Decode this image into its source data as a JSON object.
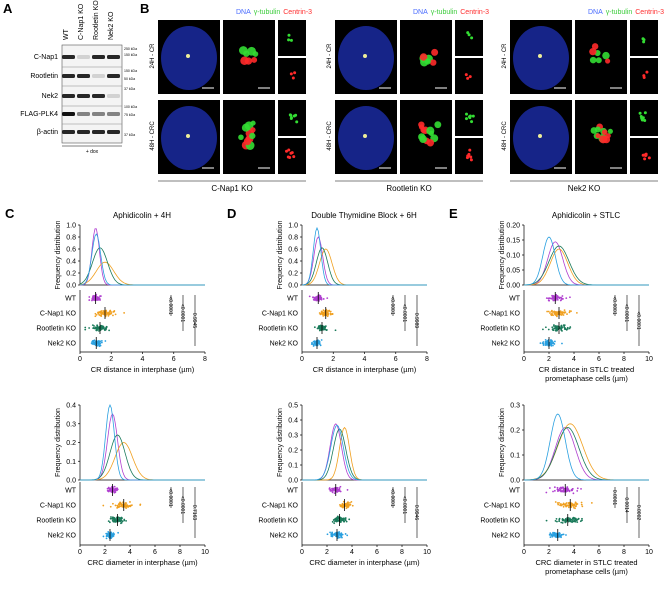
{
  "panel_a": {
    "label": "A",
    "lanes": [
      "WT",
      "C-Nap1 KO",
      "Rootletin KO",
      "Nek2 KO"
    ],
    "rows": [
      "C-Nap1",
      "Rootletin",
      "Nek2",
      "FLAG-PLK4",
      "β-actin"
    ],
    "markers": [
      "250 kDa",
      "150 kDa",
      "150 kDa",
      "50 kDa",
      "37 kDa",
      "100 kDa",
      "75 kDa",
      "37 kDa"
    ],
    "note": "+ dox"
  },
  "panel_b": {
    "label": "B",
    "stain": [
      "DNA",
      "γ-tubulin",
      "Centrin-3"
    ],
    "conditions": [
      "24H - CR",
      "48H - CRC"
    ],
    "groups": [
      "C-Nap1 KO",
      "Rootletin KO",
      "Nek2 KO"
    ]
  },
  "panels": [
    {
      "label": "C",
      "title": "Aphidicolin + 4H",
      "plots": [
        {
          "ylabel": "Frequency distribution",
          "yticks": [
            "0.0",
            "0.2",
            "0.4",
            "0.6",
            "0.8",
            "1.0"
          ],
          "xticks": [
            "0",
            "2",
            "4",
            "6",
            "8"
          ],
          "xlabel": [
            "CR distance in interphase (µm)"
          ],
          "rows": [
            "WT",
            "C-Nap1 KO",
            "Rootletin KO",
            "Nek2 KO"
          ],
          "stats": [
            "<0.0001",
            "<0.0001",
            "0.9945"
          ]
        },
        {
          "ylabel": "Frequency distribution",
          "yticks": [
            "0.0",
            "0.1",
            "0.2",
            "0.3",
            "0.4"
          ],
          "xticks": [
            "0",
            "2",
            "4",
            "6",
            "8",
            "10"
          ],
          "xlabel": [
            "CRC diameter in interphase (µm)"
          ],
          "rows": [
            "WT",
            "C-Nap1 KO",
            "Rootletin KO",
            "Nek2 KO"
          ],
          "stats": [
            "<0.0001",
            "<0.0001",
            "0.7163"
          ]
        }
      ]
    },
    {
      "label": "D",
      "title": "Double Thymidine Block + 6H",
      "plots": [
        {
          "ylabel": "Frequency distribution",
          "yticks": [
            "0.0",
            "0.2",
            "0.4",
            "0.6",
            "0.8",
            "1.0"
          ],
          "xticks": [
            "0",
            "2",
            "4",
            "6",
            "8"
          ],
          "xlabel": [
            "CR distance in interphase (µm)"
          ],
          "rows": [
            "WT",
            "C-Nap1 KO",
            "Rootletin KO",
            "Nek2 KO"
          ],
          "stats": [
            "<0.0001",
            "<0.0001",
            "0.9989"
          ]
        },
        {
          "ylabel": "Frequency distribution",
          "yticks": [
            "0.0",
            "0.1",
            "0.2",
            "0.3",
            "0.4",
            "0.5"
          ],
          "xticks": [
            "0",
            "2",
            "4",
            "6",
            "8",
            "10"
          ],
          "xlabel": [
            "CRC diameter in interphase (µm)"
          ],
          "rows": [
            "WT",
            "C-Nap1 KO",
            "Rootletin KO",
            "Nek2 KO"
          ],
          "stats": [
            "<0.0001",
            "<0.0001",
            "0.9946"
          ]
        }
      ]
    },
    {
      "label": "E",
      "title": "Aphidicolin + STLC",
      "plots": [
        {
          "ylabel": "Frequency distribution",
          "yticks": [
            "0.00",
            "0.05",
            "0.10",
            "0.15",
            "0.20"
          ],
          "xticks": [
            "0",
            "2",
            "4",
            "6",
            "8",
            "10"
          ],
          "xlabel": [
            "CR distance in STLC treated",
            "prometaphase cells (µm)"
          ],
          "rows": [
            "WT",
            "C-Nap1 KO",
            "Rootletin KO",
            "Nek2 KO"
          ],
          "stats": [
            "<0.0001",
            "<0.0001",
            "<0.0001"
          ]
        },
        {
          "ylabel": "Frequency distribution",
          "yticks": [
            "0.0",
            "0.1",
            "0.2",
            "0.3"
          ],
          "xticks": [
            "0",
            "2",
            "4",
            "6",
            "8",
            "10"
          ],
          "xlabel": [
            "CRC diameter in STLC treated",
            "prometaphase cells (µm)"
          ],
          "rows": [
            "WT",
            "C-Nap1 KO",
            "Rootletin KO",
            "Nek2 KO"
          ],
          "stats": [
            "0.0001",
            "0.0014",
            "0.0002"
          ]
        }
      ]
    }
  ]
}
